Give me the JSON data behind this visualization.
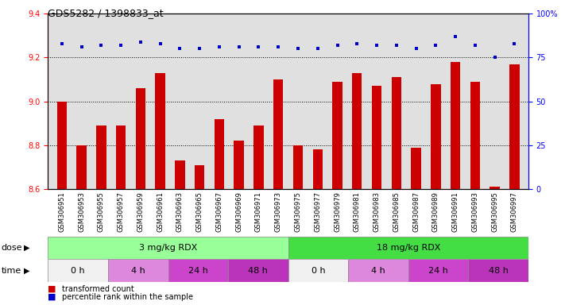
{
  "title": "GDS5282 / 1398833_at",
  "samples": [
    "GSM306951",
    "GSM306953",
    "GSM306955",
    "GSM306957",
    "GSM306959",
    "GSM306961",
    "GSM306963",
    "GSM306965",
    "GSM306967",
    "GSM306969",
    "GSM306971",
    "GSM306973",
    "GSM306975",
    "GSM306977",
    "GSM306979",
    "GSM306981",
    "GSM306983",
    "GSM306985",
    "GSM306987",
    "GSM306989",
    "GSM306991",
    "GSM306993",
    "GSM306995",
    "GSM306997"
  ],
  "bar_values": [
    9.0,
    8.8,
    8.89,
    8.89,
    9.06,
    9.13,
    8.73,
    8.71,
    8.92,
    8.82,
    8.89,
    9.1,
    8.8,
    8.78,
    9.09,
    9.13,
    9.07,
    9.11,
    8.79,
    9.08,
    9.18,
    9.09,
    8.61,
    9.17
  ],
  "dot_values": [
    83,
    81,
    82,
    82,
    84,
    83,
    80,
    80,
    81,
    81,
    81,
    81,
    80,
    80,
    82,
    83,
    82,
    82,
    80,
    82,
    87,
    82,
    75,
    83
  ],
  "bar_color": "#cc0000",
  "dot_color": "#0000cc",
  "ylim_left": [
    8.6,
    9.4
  ],
  "ylim_right": [
    0,
    100
  ],
  "yticks_left": [
    8.6,
    8.8,
    9.0,
    9.2,
    9.4
  ],
  "yticks_right": [
    0,
    25,
    50,
    75,
    100
  ],
  "grid_values": [
    8.8,
    9.0,
    9.2
  ],
  "dose_groups": [
    {
      "label": "3 mg/kg RDX",
      "start": 0,
      "end": 12,
      "color": "#99ff99"
    },
    {
      "label": "18 mg/kg RDX",
      "start": 12,
      "end": 24,
      "color": "#44dd44"
    }
  ],
  "time_groups": [
    {
      "label": "0 h",
      "start": 0,
      "end": 3,
      "color": "#f0f0f0"
    },
    {
      "label": "4 h",
      "start": 3,
      "end": 6,
      "color": "#dd88dd"
    },
    {
      "label": "24 h",
      "start": 6,
      "end": 9,
      "color": "#cc44cc"
    },
    {
      "label": "48 h",
      "start": 9,
      "end": 12,
      "color": "#bb33bb"
    },
    {
      "label": "0 h",
      "start": 12,
      "end": 15,
      "color": "#f0f0f0"
    },
    {
      "label": "4 h",
      "start": 15,
      "end": 18,
      "color": "#dd88dd"
    },
    {
      "label": "24 h",
      "start": 18,
      "end": 21,
      "color": "#cc44cc"
    },
    {
      "label": "48 h",
      "start": 21,
      "end": 24,
      "color": "#bb33bb"
    }
  ],
  "legend_bar_label": "transformed count",
  "legend_dot_label": "percentile rank within the sample",
  "dose_label": "dose",
  "time_label": "time",
  "background_color": "#ffffff",
  "plot_bg_color": "#e0e0e0"
}
